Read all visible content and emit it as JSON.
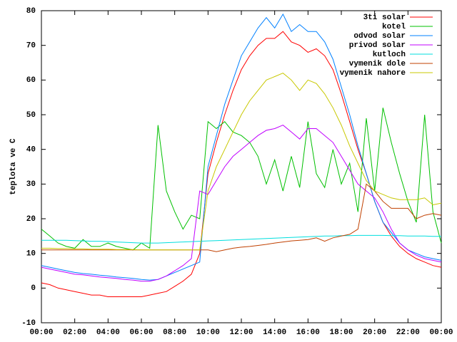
{
  "chart_data": {
    "type": "line",
    "y_label": "teplota ve C",
    "x": [
      0,
      0.5,
      1,
      1.5,
      2,
      2.5,
      3,
      3.5,
      4,
      4.5,
      5,
      5.5,
      6,
      6.5,
      7,
      7.5,
      8,
      8.5,
      9,
      9.5,
      10,
      10.5,
      11,
      11.5,
      12,
      12.5,
      13,
      13.5,
      14,
      14.5,
      15,
      15.5,
      16,
      16.5,
      17,
      17.5,
      18,
      18.5,
      19,
      19.5,
      20,
      20.5,
      21,
      21.5,
      22,
      22.5,
      23,
      23.5,
      24
    ],
    "series": [
      {
        "name": "3ti solar",
        "color": "#ff0000",
        "values": [
          1.5,
          1,
          0,
          -0.5,
          -1,
          -1.5,
          -2,
          -2,
          -2.5,
          -2.5,
          -2.5,
          -2.5,
          -2.5,
          -2,
          -1.5,
          -1,
          0.5,
          2,
          4,
          10,
          33,
          42,
          50,
          57,
          63,
          67,
          70,
          72,
          72,
          74,
          71,
          70,
          68,
          69,
          67,
          63,
          56,
          48,
          40,
          33,
          25,
          19,
          15,
          12,
          10,
          8.5,
          7.5,
          6.5,
          6
        ]
      },
      {
        "name": "kotel",
        "color": "#00c000",
        "values": [
          17,
          15,
          13,
          12,
          11.5,
          14,
          12,
          12,
          13,
          12,
          11.5,
          11,
          13,
          11.5,
          47,
          28,
          22,
          17,
          21,
          20,
          48,
          46,
          48,
          45,
          44,
          42,
          38,
          30,
          37,
          28,
          38,
          29,
          48,
          33,
          29,
          40,
          30,
          36,
          22,
          49,
          28,
          52,
          42,
          33,
          25,
          19,
          50,
          22,
          13
        ]
      },
      {
        "name": "odvod solar",
        "color": "#0080ff",
        "values": [
          6.5,
          6,
          5.5,
          5,
          4.5,
          4.2,
          4,
          3.7,
          3.5,
          3.2,
          3,
          2.8,
          2.5,
          2.3,
          2.5,
          3.5,
          4.5,
          5.5,
          6.5,
          7.5,
          35,
          44,
          53,
          60,
          67,
          71,
          75,
          78,
          75,
          79,
          74,
          76,
          74,
          74,
          71,
          66,
          58,
          50,
          41,
          33,
          25,
          19,
          16,
          13,
          11,
          10,
          9,
          8.5,
          8
        ]
      },
      {
        "name": "privod solar",
        "color": "#c000ff",
        "values": [
          6,
          5.5,
          5,
          4.5,
          4,
          3.8,
          3.5,
          3.2,
          3,
          2.8,
          2.5,
          2.3,
          2,
          2,
          2.5,
          3.5,
          5,
          6.5,
          8.5,
          28,
          27,
          31,
          35,
          38,
          40,
          42,
          44,
          45.5,
          46,
          47,
          45,
          43,
          46,
          46,
          44,
          42,
          38,
          34,
          30,
          28,
          26,
          22,
          17,
          13,
          11,
          9.5,
          8.5,
          8,
          7.5
        ]
      },
      {
        "name": "kutloch",
        "color": "#00dede",
        "values": [
          13.8,
          13.8,
          13.8,
          13.8,
          13.7,
          13.6,
          13.5,
          13.5,
          13.4,
          13.3,
          13.2,
          13.1,
          13,
          13,
          13,
          13.1,
          13.2,
          13.3,
          13.4,
          13.5,
          13.6,
          13.7,
          13.8,
          13.9,
          14,
          14.1,
          14.2,
          14.3,
          14.4,
          14.5,
          14.6,
          14.7,
          14.8,
          14.9,
          15,
          15,
          15.1,
          15.1,
          15.2,
          15.2,
          15.2,
          15.2,
          15.1,
          15.1,
          15,
          15,
          15,
          14.9,
          14.9
        ]
      },
      {
        "name": "vymenik dole",
        "color": "#c04000",
        "values": [
          11,
          11,
          11,
          11,
          11,
          11,
          11,
          11,
          11,
          11,
          11,
          11,
          11,
          11,
          11,
          11,
          11,
          11,
          11,
          11,
          11,
          10.5,
          11,
          11.5,
          11.8,
          12,
          12.3,
          12.6,
          13,
          13.3,
          13.6,
          13.8,
          14,
          14.5,
          13.5,
          14.5,
          15,
          15.5,
          17,
          30,
          28,
          25,
          23,
          23,
          23,
          20,
          21,
          21.5,
          21
        ]
      },
      {
        "name": "vymenik nahore",
        "color": "#c8c800",
        "values": [
          11.5,
          11.5,
          11.4,
          11.4,
          11.3,
          11.3,
          11.2,
          11.2,
          11.2,
          11.1,
          11.1,
          11.1,
          11,
          11,
          11,
          11,
          11,
          11,
          11,
          11,
          28,
          35,
          40,
          45,
          50,
          54,
          57,
          60,
          61,
          62,
          60,
          57,
          60,
          59,
          56,
          52,
          47,
          41,
          36,
          31,
          28,
          27,
          26,
          25.5,
          25.5,
          25.5,
          26,
          24,
          24.5
        ]
      }
    ],
    "xlim": [
      0,
      24
    ],
    "xticks": [
      {
        "value": 0,
        "label": "00:00"
      },
      {
        "value": 2,
        "label": "02:00"
      },
      {
        "value": 4,
        "label": "04:00"
      },
      {
        "value": 6,
        "label": "06:00"
      },
      {
        "value": 8,
        "label": "08:00"
      },
      {
        "value": 10,
        "label": "10:00"
      },
      {
        "value": 12,
        "label": "12:00"
      },
      {
        "value": 14,
        "label": "14:00"
      },
      {
        "value": 16,
        "label": "16:00"
      },
      {
        "value": 18,
        "label": "18:00"
      },
      {
        "value": 20,
        "label": "20:00"
      },
      {
        "value": 22,
        "label": "22:00"
      },
      {
        "value": 24,
        "label": "00:00"
      }
    ],
    "ylim": [
      -10,
      80
    ],
    "yticks": [
      -10,
      0,
      10,
      20,
      30,
      40,
      50,
      60,
      70,
      80
    ],
    "legend": "top-right"
  }
}
